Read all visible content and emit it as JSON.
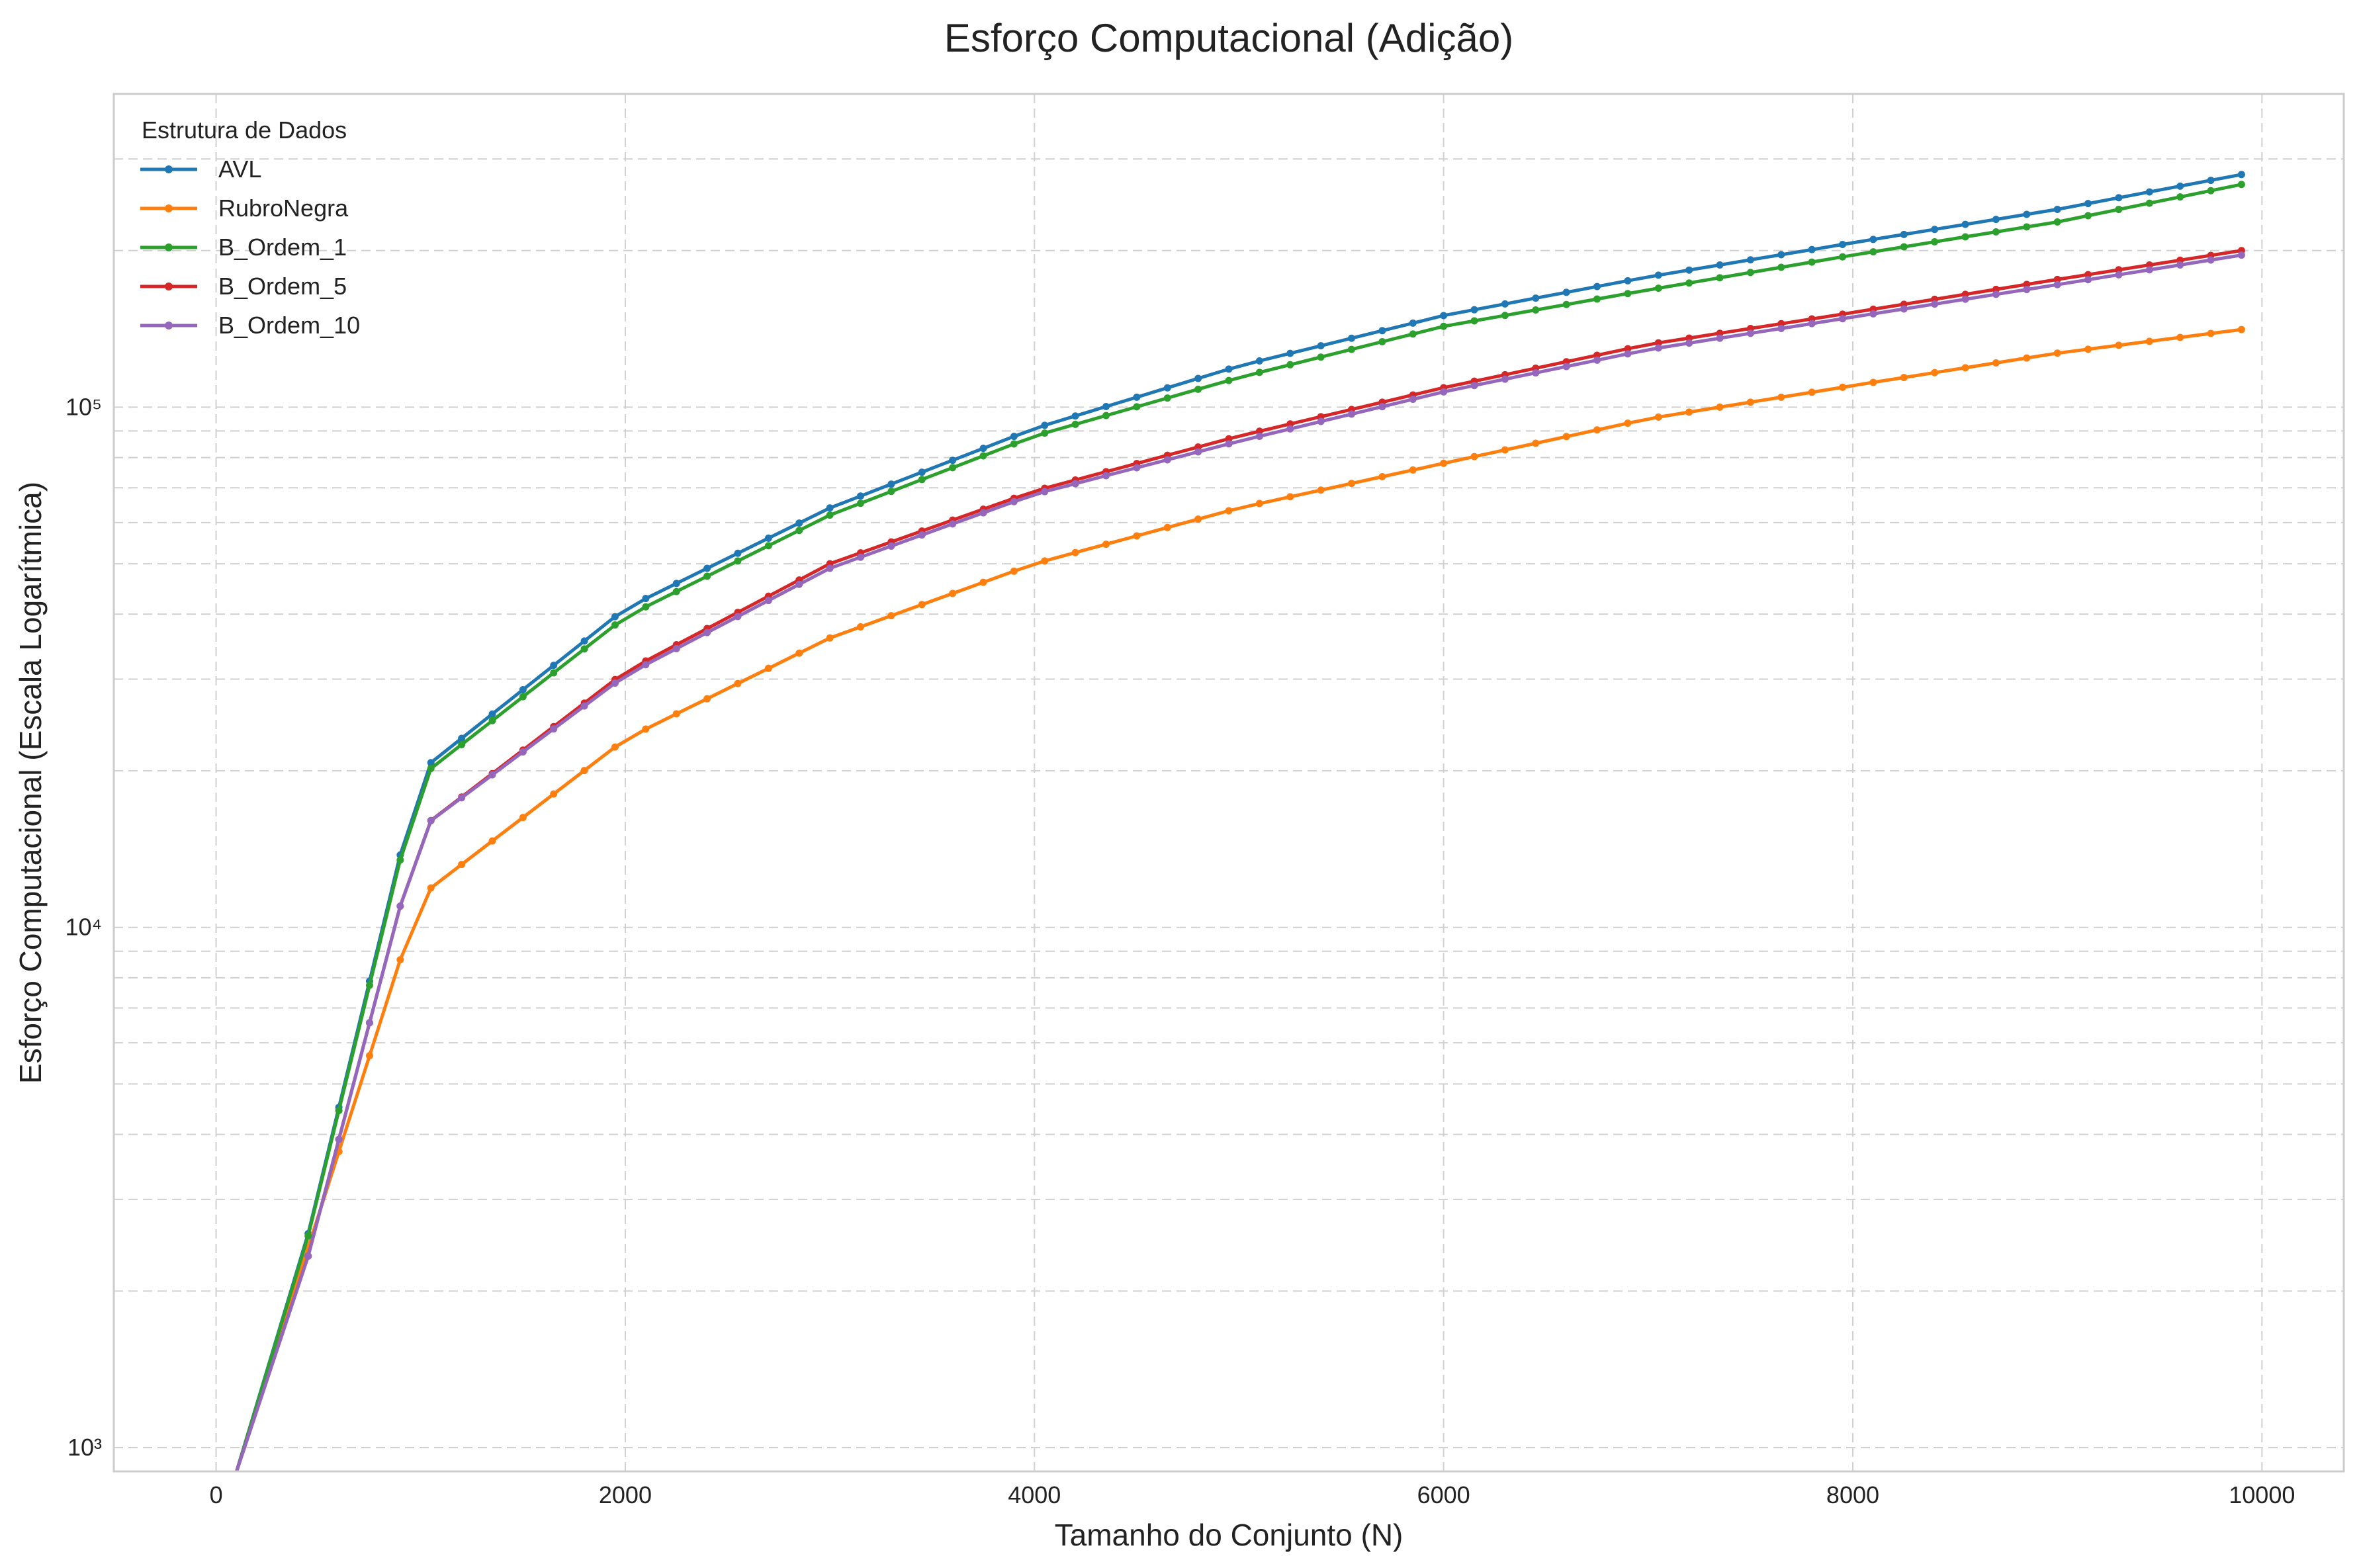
{
  "chart_data": {
    "type": "line",
    "title": "Esforço Computacional (Adição)",
    "xlabel": "Tamanho do Conjunto (N)",
    "ylabel": "Esforço Computacional (Escala Logarítmica)",
    "x_scale": "linear",
    "y_scale": "log",
    "xlim": [
      -500,
      10400
    ],
    "ylim": [
      900,
      400000
    ],
    "x_ticks": [
      0,
      2000,
      4000,
      6000,
      8000,
      10000
    ],
    "x_tick_labels": [
      "0",
      "2000",
      "4000",
      "6000",
      "8000",
      "10000"
    ],
    "y_ticks": [
      1000,
      10000,
      100000
    ],
    "y_tick_labels": [
      "10³",
      "10⁴",
      "10⁵"
    ],
    "grid": true,
    "grid_style": "dashed",
    "legend": {
      "title": "Estrutura de Dados",
      "placement": "top-left"
    },
    "x": [
      100,
      1000,
      2000,
      3000,
      4000,
      5000,
      6000,
      7000,
      8000,
      9000,
      9900
    ],
    "series": [
      {
        "name": "AVL",
        "color": "#1f77b4",
        "values": [
          700,
          20000,
          41000,
          64000,
          91000,
          120000,
          150000,
          178000,
          207000,
          240000,
          280000
        ]
      },
      {
        "name": "RubroNegra",
        "color": "#ff7f0e",
        "values": [
          900,
          11500,
          23000,
          36000,
          50000,
          64000,
          78000,
          95000,
          110000,
          127000,
          141000
        ]
      },
      {
        "name": "B_Ordem_1",
        "color": "#2ca02c",
        "values": [
          700,
          19500,
          39500,
          62000,
          88000,
          114000,
          143000,
          168000,
          196000,
          227000,
          268000
        ]
      },
      {
        "name": "B_Ordem_5",
        "color": "#d62728",
        "values": [
          700,
          15500,
          31000,
          50000,
          69000,
          88000,
          109000,
          132000,
          152000,
          176000,
          200000
        ]
      },
      {
        "name": "B_Ordem_10",
        "color": "#9467bd",
        "values": [
          700,
          15500,
          30500,
          49000,
          68000,
          86000,
          107000,
          129000,
          149000,
          172000,
          196000
        ]
      }
    ]
  }
}
